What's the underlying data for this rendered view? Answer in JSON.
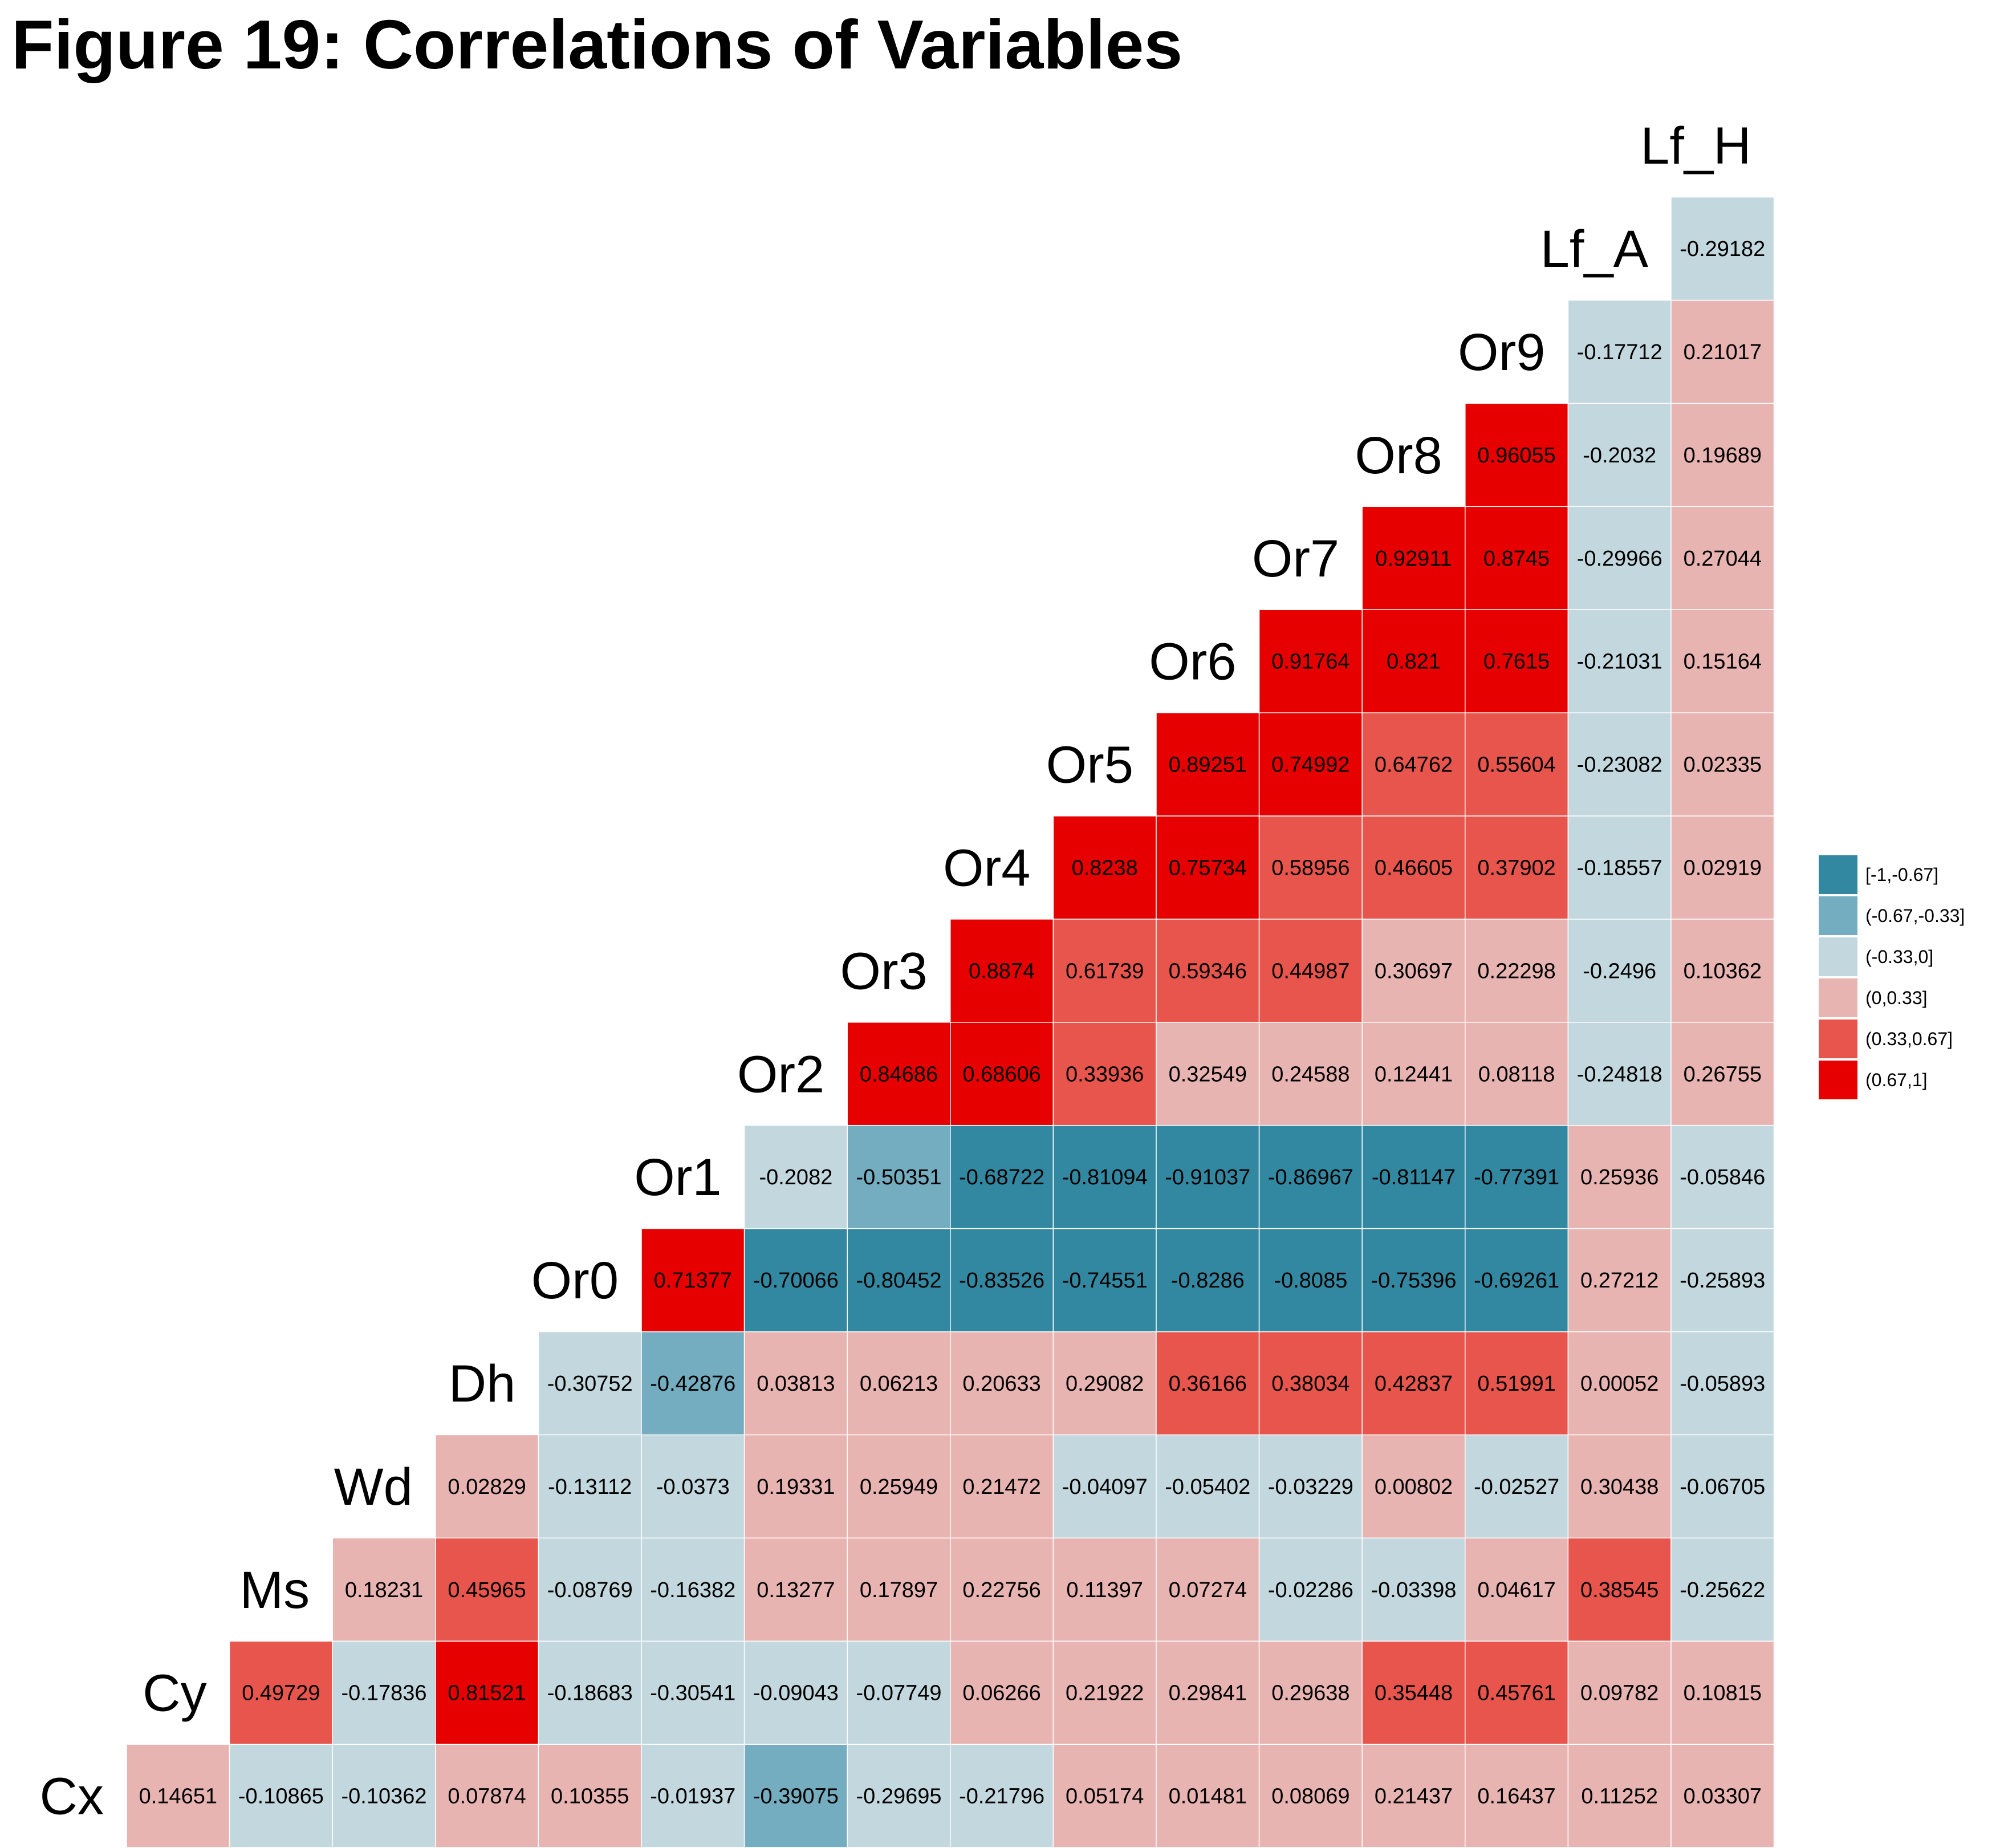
{
  "title": "Figure 19: Correlations of Variables",
  "chart_data": {
    "type": "heatmap",
    "title": "Figure 19: Correlations of Variables",
    "variables": [
      "Cx",
      "Cy",
      "Ms",
      "Wd",
      "Dh",
      "Or0",
      "Or1",
      "Or2",
      "Or3",
      "Or4",
      "Or5",
      "Or6",
      "Or7",
      "Or8",
      "Or9",
      "Lf_A",
      "Lf_H"
    ],
    "rows": [
      {
        "label": "Cx",
        "values": [
          "0.14651",
          "-0.10865",
          "-0.10362",
          "0.07874",
          "0.10355",
          "-0.01937",
          "-0.39075",
          "-0.29695",
          "-0.21796",
          "0.05174",
          "0.01481",
          "0.08069",
          "0.21437",
          "0.16437",
          "0.11252",
          "0.03307"
        ]
      },
      {
        "label": "Cy",
        "values": [
          "0.49729",
          "-0.17836",
          "0.81521",
          "-0.18683",
          "-0.30541",
          "-0.09043",
          "-0.07749",
          "0.06266",
          "0.21922",
          "0.29841",
          "0.29638",
          "0.35448",
          "0.45761",
          "0.09782",
          "0.10815"
        ]
      },
      {
        "label": "Ms",
        "values": [
          "0.18231",
          "0.45965",
          "-0.08769",
          "-0.16382",
          "0.13277",
          "0.17897",
          "0.22756",
          "0.11397",
          "0.07274",
          "-0.02286",
          "-0.03398",
          "0.04617",
          "0.38545",
          "-0.25622"
        ]
      },
      {
        "label": "Wd",
        "values": [
          "0.02829",
          "-0.13112",
          "-0.0373",
          "0.19331",
          "0.25949",
          "0.21472",
          "-0.04097",
          "-0.05402",
          "-0.03229",
          "0.00802",
          "-0.02527",
          "0.30438",
          "-0.06705"
        ]
      },
      {
        "label": "Dh",
        "values": [
          "-0.30752",
          "-0.42876",
          "0.03813",
          "0.06213",
          "0.20633",
          "0.29082",
          "0.36166",
          "0.38034",
          "0.42837",
          "0.51991",
          "0.00052",
          "-0.05893"
        ]
      },
      {
        "label": "Or0",
        "values": [
          "0.71377",
          "-0.70066",
          "-0.80452",
          "-0.83526",
          "-0.74551",
          "-0.8286",
          "-0.8085",
          "-0.75396",
          "-0.69261",
          "0.27212",
          "-0.25893"
        ]
      },
      {
        "label": "Or1",
        "values": [
          "-0.2082",
          "-0.50351",
          "-0.68722",
          "-0.81094",
          "-0.91037",
          "-0.86967",
          "-0.81147",
          "-0.77391",
          "0.25936",
          "-0.05846"
        ]
      },
      {
        "label": "Or2",
        "values": [
          "0.84686",
          "0.68606",
          "0.33936",
          "0.32549",
          "0.24588",
          "0.12441",
          "0.08118",
          "-0.24818",
          "0.26755"
        ]
      },
      {
        "label": "Or3",
        "values": [
          "0.8874",
          "0.61739",
          "0.59346",
          "0.44987",
          "0.30697",
          "0.22298",
          "-0.2496",
          "0.10362"
        ]
      },
      {
        "label": "Or4",
        "values": [
          "0.8238",
          "0.75734",
          "0.58956",
          "0.46605",
          "0.37902",
          "-0.18557",
          "0.02919"
        ]
      },
      {
        "label": "Or5",
        "values": [
          "0.89251",
          "0.74992",
          "0.64762",
          "0.55604",
          "-0.23082",
          "0.02335"
        ]
      },
      {
        "label": "Or6",
        "values": [
          "0.91764",
          "0.821",
          "0.7615",
          "-0.21031",
          "0.15164"
        ]
      },
      {
        "label": "Or7",
        "values": [
          "0.92911",
          "0.8745",
          "-0.29966",
          "0.27044"
        ]
      },
      {
        "label": "Or8",
        "values": [
          "0.96055",
          "-0.2032",
          "0.19689"
        ]
      },
      {
        "label": "Or9",
        "values": [
          "-0.17712",
          "0.21017"
        ]
      },
      {
        "label": "Lf_A",
        "values": [
          "-0.29182"
        ]
      },
      {
        "label": "Lf_H",
        "values": []
      }
    ],
    "legend": {
      "placement": "right",
      "bins": [
        {
          "label": "[-1,-0.67]",
          "min": -1,
          "max": -0.67,
          "color": "#3288A1"
        },
        {
          "label": "(-0.67,-0.33]",
          "min": -0.67,
          "max": -0.33,
          "color": "#73ADBF"
        },
        {
          "label": "(-0.33,0]",
          "min": -0.33,
          "max": 0,
          "color": "#C2D7DE"
        },
        {
          "label": "(0,0.33]",
          "min": 0,
          "max": 0.33,
          "color": "#E8B4B1"
        },
        {
          "label": "(0.33,0.67]",
          "min": 0.33,
          "max": 0.67,
          "color": "#E7554C"
        },
        {
          "label": "(0.67,1]",
          "min": 0.67,
          "max": 1,
          "color": "#E60000"
        }
      ]
    }
  }
}
